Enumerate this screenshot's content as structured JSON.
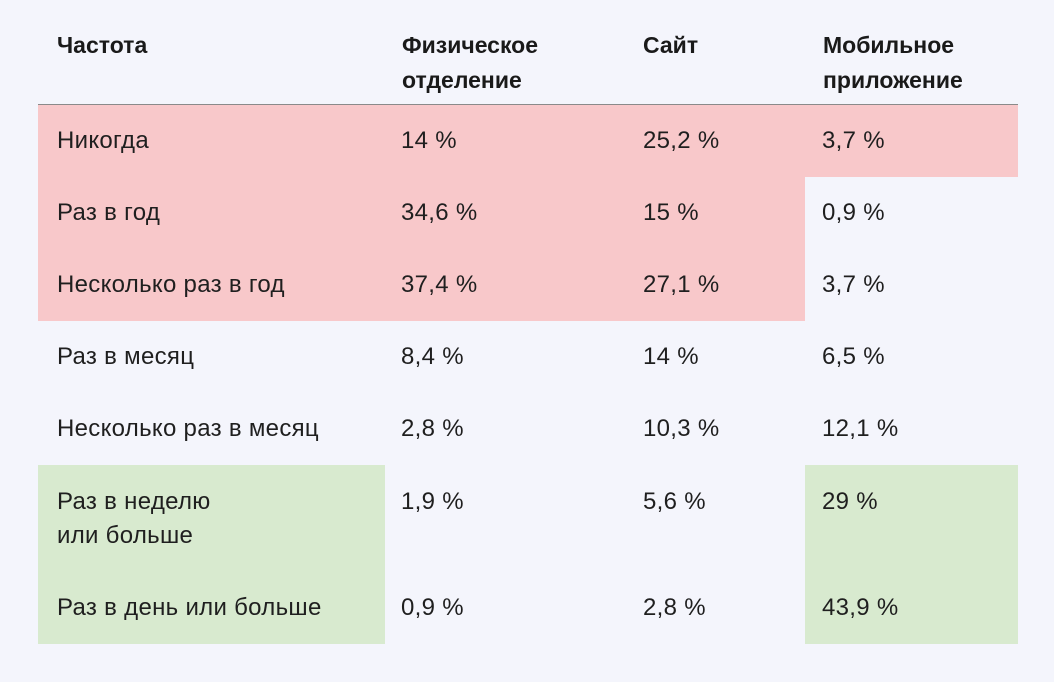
{
  "headers": {
    "frequency": "Частота",
    "branch": "Физическое\nотделение",
    "site": "Сайт",
    "app": "Мобильное\nприложение"
  },
  "rows": [
    {
      "label": "Никогда",
      "branch": "14 %",
      "site": "25,2 %",
      "app": "3,7 %"
    },
    {
      "label": "Раз в год",
      "branch": "34,6 %",
      "site": "15 %",
      "app": "0,9 %"
    },
    {
      "label": "Несколько раз в год",
      "branch": "37,4 %",
      "site": "27,1 %",
      "app": "3,7 %"
    },
    {
      "label": "Раз в месяц",
      "branch": "8,4 %",
      "site": "14 %",
      "app": "6,5 %"
    },
    {
      "label": "Несколько раз в месяц",
      "branch": "2,8 %",
      "site": "10,3 %",
      "app": "12,1 %"
    },
    {
      "label": "Раз в неделю\nили больше",
      "branch": "1,9 %",
      "site": "5,6 %",
      "app": "29 %"
    },
    {
      "label": "Раз в день или больше",
      "branch": "0,9 %",
      "site": "2,8 %",
      "app": "43,9 %"
    }
  ],
  "colors": {
    "background": "#f4f5fc",
    "negative_highlight": "#f8c8ca",
    "positive_highlight": "#d8eacf"
  }
}
